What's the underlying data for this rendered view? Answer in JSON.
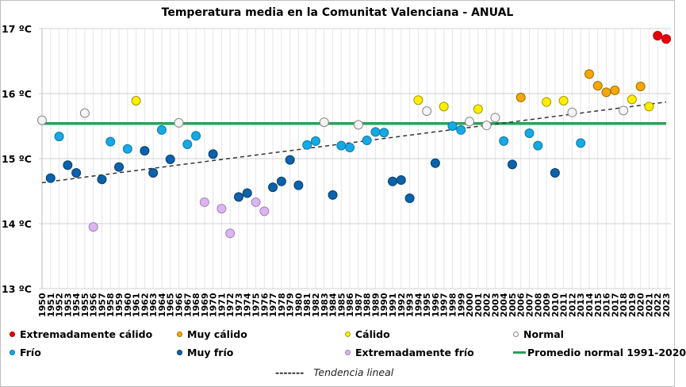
{
  "chart_data": {
    "type": "scatter",
    "title": "Temperatura media en la Comunitat Valenciana - ANUAL",
    "xlabel": "",
    "ylabel": "",
    "ylim": [
      13,
      17
    ],
    "yticks": [
      {
        "value": 17,
        "label": "17 ºC"
      },
      {
        "value": 16,
        "label": "16 ºC"
      },
      {
        "value": 15,
        "label": "15 ºC"
      },
      {
        "value": 14,
        "label": "14 ºC"
      },
      {
        "value": 13,
        "label": "13 ºC"
      }
    ],
    "grid": true,
    "legend_position": "bottom",
    "categories_info": {
      "extremely_warm": {
        "label": "Extremadamente cálido",
        "color": "#e8000b"
      },
      "very_warm": {
        "label": "Muy cálido",
        "color": "#f5a800"
      },
      "warm": {
        "label": "Cálido",
        "color": "#ffee00"
      },
      "normal": {
        "label": "Normal",
        "color": "#f2f2f2"
      },
      "cold": {
        "label": "Frío",
        "color": "#16a9e4"
      },
      "very_cold": {
        "label": "Muy frío",
        "color": "#0b62ab"
      },
      "extremely_cold": {
        "label": "Extremadamente frío",
        "color": "#dcb4f0"
      }
    },
    "points": [
      {
        "year": 1950,
        "value": 15.59,
        "cat": "normal"
      },
      {
        "year": 1951,
        "value": 14.7,
        "cat": "very_cold"
      },
      {
        "year": 1952,
        "value": 15.34,
        "cat": "cold"
      },
      {
        "year": 1953,
        "value": 14.9,
        "cat": "very_cold"
      },
      {
        "year": 1954,
        "value": 14.78,
        "cat": "very_cold"
      },
      {
        "year": 1955,
        "value": 15.7,
        "cat": "normal"
      },
      {
        "year": 1956,
        "value": 13.95,
        "cat": "extremely_cold"
      },
      {
        "year": 1957,
        "value": 14.68,
        "cat": "very_cold"
      },
      {
        "year": 1958,
        "value": 15.26,
        "cat": "cold"
      },
      {
        "year": 1959,
        "value": 14.87,
        "cat": "very_cold"
      },
      {
        "year": 1960,
        "value": 15.15,
        "cat": "cold"
      },
      {
        "year": 1961,
        "value": 15.89,
        "cat": "warm"
      },
      {
        "year": 1962,
        "value": 15.12,
        "cat": "very_cold"
      },
      {
        "year": 1963,
        "value": 14.78,
        "cat": "very_cold"
      },
      {
        "year": 1964,
        "value": 15.44,
        "cat": "cold"
      },
      {
        "year": 1965,
        "value": 14.99,
        "cat": "very_cold"
      },
      {
        "year": 1966,
        "value": 15.55,
        "cat": "normal"
      },
      {
        "year": 1967,
        "value": 15.22,
        "cat": "cold"
      },
      {
        "year": 1968,
        "value": 15.35,
        "cat": "cold"
      },
      {
        "year": 1969,
        "value": 14.33,
        "cat": "extremely_cold"
      },
      {
        "year": 1970,
        "value": 15.07,
        "cat": "very_cold"
      },
      {
        "year": 1971,
        "value": 14.23,
        "cat": "extremely_cold"
      },
      {
        "year": 1972,
        "value": 13.85,
        "cat": "extremely_cold"
      },
      {
        "year": 1973,
        "value": 14.41,
        "cat": "very_cold"
      },
      {
        "year": 1974,
        "value": 14.47,
        "cat": "very_cold"
      },
      {
        "year": 1975,
        "value": 14.33,
        "cat": "extremely_cold"
      },
      {
        "year": 1976,
        "value": 14.19,
        "cat": "extremely_cold"
      },
      {
        "year": 1977,
        "value": 14.56,
        "cat": "very_cold"
      },
      {
        "year": 1978,
        "value": 14.65,
        "cat": "very_cold"
      },
      {
        "year": 1979,
        "value": 14.98,
        "cat": "very_cold"
      },
      {
        "year": 1980,
        "value": 14.59,
        "cat": "very_cold"
      },
      {
        "year": 1981,
        "value": 15.21,
        "cat": "cold"
      },
      {
        "year": 1982,
        "value": 15.27,
        "cat": "cold"
      },
      {
        "year": 1983,
        "value": 15.56,
        "cat": "normal"
      },
      {
        "year": 1984,
        "value": 14.44,
        "cat": "very_cold"
      },
      {
        "year": 1985,
        "value": 15.2,
        "cat": "cold"
      },
      {
        "year": 1986,
        "value": 15.17,
        "cat": "cold"
      },
      {
        "year": 1987,
        "value": 15.52,
        "cat": "normal"
      },
      {
        "year": 1988,
        "value": 15.28,
        "cat": "cold"
      },
      {
        "year": 1989,
        "value": 15.41,
        "cat": "cold"
      },
      {
        "year": 1990,
        "value": 15.4,
        "cat": "cold"
      },
      {
        "year": 1991,
        "value": 14.65,
        "cat": "very_cold"
      },
      {
        "year": 1992,
        "value": 14.67,
        "cat": "very_cold"
      },
      {
        "year": 1993,
        "value": 14.39,
        "cat": "very_cold"
      },
      {
        "year": 1994,
        "value": 15.9,
        "cat": "warm"
      },
      {
        "year": 1995,
        "value": 15.73,
        "cat": "normal"
      },
      {
        "year": 1996,
        "value": 14.93,
        "cat": "very_cold"
      },
      {
        "year": 1997,
        "value": 15.8,
        "cat": "warm"
      },
      {
        "year": 1998,
        "value": 15.5,
        "cat": "cold"
      },
      {
        "year": 1999,
        "value": 15.44,
        "cat": "cold"
      },
      {
        "year": 2000,
        "value": 15.57,
        "cat": "normal"
      },
      {
        "year": 2001,
        "value": 15.76,
        "cat": "warm"
      },
      {
        "year": 2002,
        "value": 15.51,
        "cat": "normal"
      },
      {
        "year": 2003,
        "value": 15.63,
        "cat": "normal"
      },
      {
        "year": 2004,
        "value": 15.27,
        "cat": "cold"
      },
      {
        "year": 2005,
        "value": 14.91,
        "cat": "very_cold"
      },
      {
        "year": 2006,
        "value": 15.94,
        "cat": "very_warm"
      },
      {
        "year": 2007,
        "value": 15.39,
        "cat": "cold"
      },
      {
        "year": 2008,
        "value": 15.2,
        "cat": "cold"
      },
      {
        "year": 2009,
        "value": 15.87,
        "cat": "warm"
      },
      {
        "year": 2010,
        "value": 14.78,
        "cat": "very_cold"
      },
      {
        "year": 2011,
        "value": 15.89,
        "cat": "warm"
      },
      {
        "year": 2012,
        "value": 15.71,
        "cat": "normal"
      },
      {
        "year": 2013,
        "value": 15.24,
        "cat": "cold"
      },
      {
        "year": 2014,
        "value": 16.3,
        "cat": "very_warm"
      },
      {
        "year": 2015,
        "value": 16.12,
        "cat": "very_warm"
      },
      {
        "year": 2016,
        "value": 16.02,
        "cat": "very_warm"
      },
      {
        "year": 2017,
        "value": 16.05,
        "cat": "very_warm"
      },
      {
        "year": 2018,
        "value": 15.74,
        "cat": "normal"
      },
      {
        "year": 2019,
        "value": 15.91,
        "cat": "warm"
      },
      {
        "year": 2020,
        "value": 16.11,
        "cat": "very_warm"
      },
      {
        "year": 2021,
        "value": 15.8,
        "cat": "warm"
      },
      {
        "year": 2022,
        "value": 16.89,
        "cat": "extremely_warm"
      },
      {
        "year": 2023,
        "value": 16.84,
        "cat": "extremely_warm"
      }
    ],
    "normal_average": {
      "label": "Promedio normal 1991-2020",
      "value": 15.54,
      "color": "#2ca05a"
    },
    "trend": {
      "label": "Tendencia lineal",
      "start": {
        "year": 1950,
        "value": 14.63
      },
      "end": {
        "year": 2023,
        "value": 15.87
      },
      "color": "#333333",
      "dash_glyph": "-------"
    }
  },
  "legend": {
    "items": [
      {
        "key": "extremely_warm",
        "label": "Extremadamente cálido"
      },
      {
        "key": "very_warm",
        "label": "Muy cálido"
      },
      {
        "key": "warm",
        "label": "Cálido"
      },
      {
        "key": "normal",
        "label": "Normal"
      },
      {
        "key": "cold",
        "label": "Frío"
      },
      {
        "key": "very_cold",
        "label": "Muy frío"
      },
      {
        "key": "extremely_cold",
        "label": "Extremadamente frío"
      }
    ]
  }
}
